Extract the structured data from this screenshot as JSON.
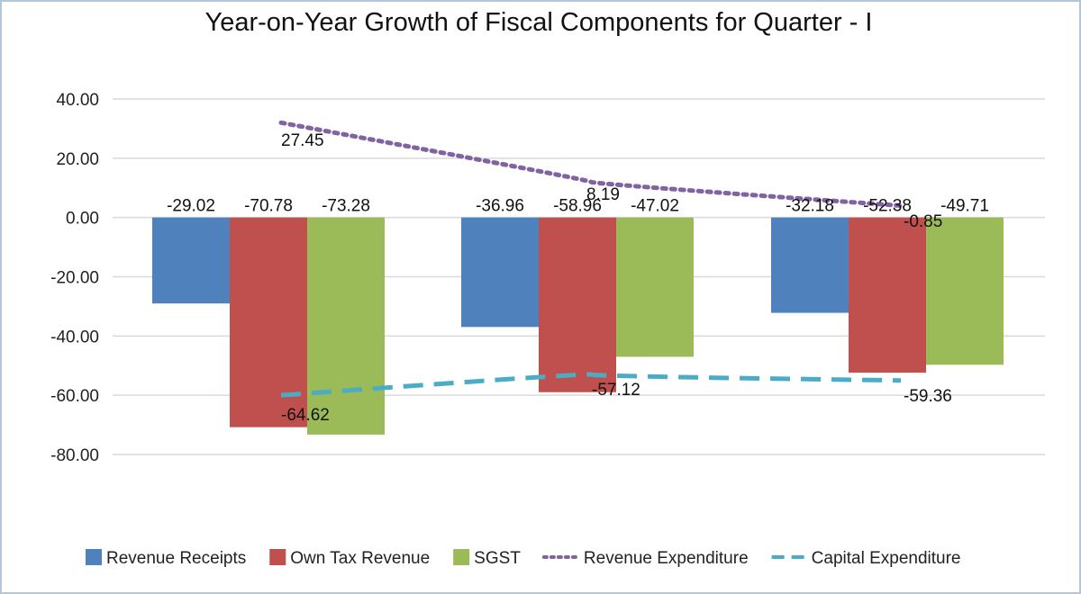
{
  "chart_data": {
    "type": "bar",
    "title": "Year-on-Year Growth of Fiscal Components for Quarter - I",
    "xlabel": "",
    "ylabel": "",
    "categories": [
      "",
      "",
      ""
    ],
    "ylim": [
      -80,
      40
    ],
    "yticks": [
      "40.00",
      "20.00",
      "0.00",
      "-20.00",
      "-40.00",
      "-60.00",
      "-80.00"
    ],
    "ytick_values": [
      40,
      20,
      0,
      -20,
      -40,
      -60,
      -80
    ],
    "grid": true,
    "legend_position": "bottom",
    "bar_series": [
      {
        "name": "Revenue Receipts",
        "color": "#4f81bd",
        "values": [
          -29.02,
          -36.96,
          -32.18
        ],
        "labels": [
          "-29.02",
          "-36.96",
          "-32.18"
        ]
      },
      {
        "name": "Own Tax Revenue",
        "color": "#c0504d",
        "values": [
          -70.78,
          -58.96,
          -52.38
        ],
        "labels": [
          "-70.78",
          "-58.96",
          "-52.38"
        ]
      },
      {
        "name": "SGST",
        "color": "#9bbb59",
        "values": [
          -73.28,
          -47.02,
          -49.71
        ],
        "labels": [
          "-73.28",
          "-47.02",
          "-49.71"
        ]
      }
    ],
    "line_series": [
      {
        "name": "Revenue Expenditure",
        "color": "#8064a2",
        "style": "dotted",
        "values": [
          27.45,
          8.19,
          -0.85
        ],
        "labels": [
          "27.45",
          "8.19",
          "-0.85"
        ],
        "line_values": [
          32,
          12,
          4
        ]
      },
      {
        "name": "Capital Expenditure",
        "color": "#4bacc6",
        "style": "dashed",
        "values": [
          -64.62,
          -57.12,
          -59.36
        ],
        "labels": [
          "-64.62",
          "-57.12",
          "-59.36"
        ],
        "line_values": [
          -60,
          -53,
          -55
        ]
      }
    ]
  }
}
